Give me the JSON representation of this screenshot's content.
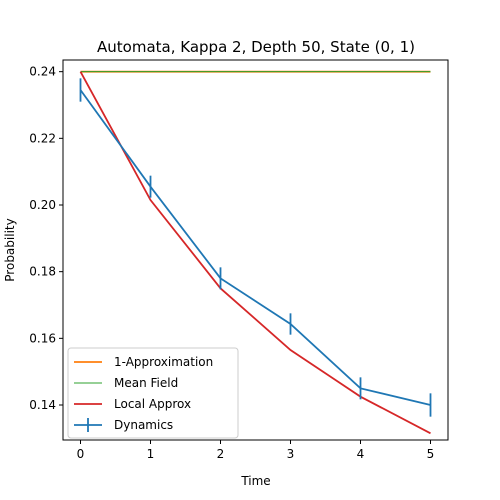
{
  "chart_data": {
    "type": "line",
    "title": "Automata, Kappa 2, Depth 50,  State (0, 1)",
    "xlabel": "Time",
    "ylabel": "Probability",
    "xlim": [
      -0.25,
      5.25
    ],
    "ylim": [
      0.1295,
      0.2435
    ],
    "xticks": [
      0,
      1,
      2,
      3,
      4,
      5
    ],
    "xtick_labels": [
      "0",
      "1",
      "2",
      "3",
      "4",
      "5"
    ],
    "yticks": [
      0.14,
      0.16,
      0.18,
      0.2,
      0.22,
      0.24
    ],
    "ytick_labels": [
      "0.14",
      "0.16",
      "0.18",
      "0.20",
      "0.22",
      "0.24"
    ],
    "grid": false,
    "legend_position": "lower-left",
    "x": [
      0,
      1,
      2,
      3,
      4,
      5
    ],
    "series": [
      {
        "name": "1-Approximation",
        "color": "#ff7f0e",
        "values": [
          0.24,
          0.24,
          0.24,
          0.24,
          0.24,
          0.24
        ],
        "style": "line"
      },
      {
        "name": "Mean Field",
        "color": "#2ca02c",
        "values": [
          0.24,
          0.24,
          0.24,
          0.24,
          0.24,
          0.24
        ],
        "style": "line"
      },
      {
        "name": "Local Approx",
        "color": "#d62728",
        "values": [
          0.24,
          0.2015,
          0.175,
          0.1565,
          0.1425,
          0.1315
        ],
        "style": "line"
      },
      {
        "name": "Dynamics",
        "color": "#1f77b4",
        "values": [
          0.2345,
          0.2055,
          0.178,
          0.1643,
          0.145,
          0.14
        ],
        "errors": [
          0.0035,
          0.0033,
          0.0033,
          0.0032,
          0.0033,
          0.0035
        ],
        "style": "errorbar"
      }
    ],
    "legend_order": [
      0,
      1,
      2,
      3
    ]
  }
}
